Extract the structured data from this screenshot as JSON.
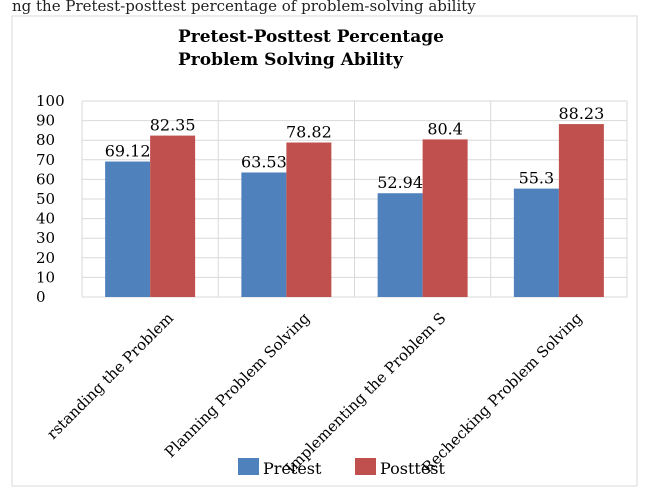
{
  "caption": "ng the Pretest-posttest percentage of problem-solving ability",
  "chart_data": {
    "type": "bar",
    "title_lines": [
      "Pretest-Posttest Percentage",
      "Problem Solving Ability"
    ],
    "categories": [
      "Understanding the Problem",
      "Planning Problem Solving",
      "Implementing the Problem Solving",
      "Rechecking Problem Solving"
    ],
    "category_labels_visible": [
      "rstanding the Problem",
      "Planning Problem Solving",
      "Implementing the Problem S",
      "Rechecking Problem Solving"
    ],
    "series": [
      {
        "name": "Pretest",
        "color": "#4f81bd",
        "values": [
          69.12,
          63.53,
          52.94,
          55.3
        ],
        "labels": [
          "69.12",
          "63.53",
          "52.94",
          "55.3"
        ]
      },
      {
        "name": "Posttest",
        "color": "#c0504d",
        "values": [
          82.35,
          78.82,
          80.4,
          88.23
        ],
        "labels": [
          "82.35",
          "78.82",
          "80.4",
          "88.23"
        ]
      }
    ],
    "ylim": [
      0,
      100
    ],
    "yticks": [
      "0",
      "10",
      "20",
      "30",
      "40",
      "50",
      "60",
      "70",
      "80",
      "90",
      "100"
    ],
    "grid": true,
    "legend": "bottom"
  }
}
